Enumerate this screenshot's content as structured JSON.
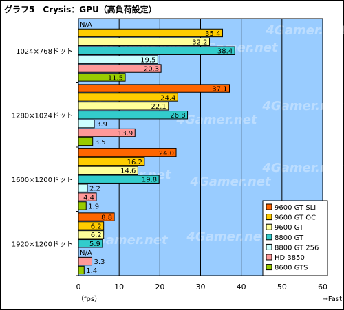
{
  "title": "グラフ5　Crysis：GPU（高負荷設定）",
  "watermark": "4Gamer.net",
  "chart_data": {
    "type": "bar",
    "orientation": "horizontal",
    "title": "グラフ5　Crysis：GPU（高負荷設定）",
    "xlabel": "（fps）",
    "xlabel_right": "→Fast",
    "xlim": [
      0,
      60
    ],
    "xticks": [
      0,
      10,
      20,
      30,
      40,
      50,
      60
    ],
    "grid": true,
    "legend_position": "bottom-right",
    "categories": [
      "1024×768ドット",
      "1280×1024ドット",
      "1600×1200ドット",
      "1920×1200ドット"
    ],
    "series": [
      {
        "name": "9600 GT SLI",
        "color": "#ff6600",
        "values": [
          null,
          37.1,
          24.0,
          8.8
        ]
      },
      {
        "name": "9600 GT OC",
        "color": "#ffcc00",
        "values": [
          35.4,
          24.4,
          16.2,
          6.2
        ]
      },
      {
        "name": "9600 GT",
        "color": "#ffff99",
        "values": [
          32.2,
          22.1,
          14.6,
          6.2
        ]
      },
      {
        "name": "8800 GT",
        "color": "#33cccc",
        "values": [
          38.4,
          26.8,
          19.8,
          5.9
        ]
      },
      {
        "name": "8800 GT 256",
        "color": "#ccffff",
        "values": [
          19.5,
          3.9,
          2.2,
          null
        ]
      },
      {
        "name": "HD 3850",
        "color": "#ff9999",
        "values": [
          20.3,
          13.9,
          4.4,
          3.3
        ]
      },
      {
        "name": "8600 GTS",
        "color": "#99cc00",
        "values": [
          11.5,
          3.5,
          1.9,
          1.4
        ]
      }
    ],
    "na_label": "N/A",
    "plot_background": "#99ccff"
  }
}
